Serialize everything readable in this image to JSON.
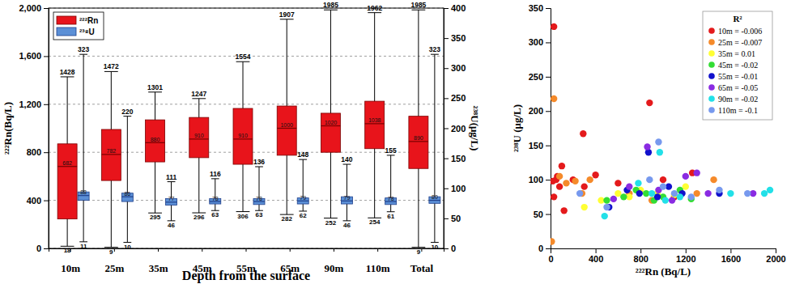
{
  "chart_data": [
    {
      "type": "box",
      "x_label": "Depth from the surface",
      "y_label": "²²²Rn(Bq/L)",
      "y2_label": "²³⁸U(μg/L)",
      "categories": [
        "10m",
        "25m",
        "35m",
        "45m",
        "55m",
        "65m",
        "90m",
        "110m",
        "Total"
      ],
      "ylim": [
        0,
        2000
      ],
      "yticks": [
        0,
        400,
        800,
        {
          "value": 1200,
          "label": "1,200"
        },
        {
          "value": 1600,
          "label": "1,600"
        },
        {
          "value": 2000,
          "label": "2,000"
        }
      ],
      "y2lim": [
        0,
        400
      ],
      "y2ticks": [
        0,
        50,
        100,
        150,
        200,
        250,
        300,
        350,
        400
      ],
      "grid": true,
      "legend": "top-left",
      "data_labels": true,
      "series": [
        {
          "name": "²²²Rn",
          "color": "#e8141b",
          "min": [
            18,
            9,
            295,
            296,
            306,
            282,
            252,
            254,
            9
          ],
          "q1": [
            245,
            565,
            720,
            755,
            700,
            775,
            800,
            830,
            665
          ],
          "median": [
            682,
            782,
            880,
            910,
            910,
            1000,
            1020,
            1038,
            890
          ],
          "q3": [
            870,
            990,
            1070,
            1090,
            1165,
            1185,
            1125,
            1225,
            1100
          ],
          "max": [
            1428,
            1472,
            1301,
            1247,
            1554,
            1907,
            1985,
            1962,
            1985
          ]
        },
        {
          "name": "²³⁸U",
          "color": "#5b8fd6",
          "axis": "y2",
          "min": [
            11,
            10,
            46,
            63,
            63,
            62,
            46,
            61,
            10
          ],
          "q1": [
            80,
            78,
            72,
            74,
            73,
            74,
            74,
            73,
            75
          ],
          "median": [
            88,
            86,
            77,
            78,
            78,
            79,
            79,
            78,
            80
          ],
          "q3": [
            94,
            92,
            83,
            83,
            83,
            84,
            86,
            84,
            86
          ],
          "max": [
            323,
            220,
            111,
            116,
            136,
            148,
            140,
            155,
            323
          ]
        }
      ]
    },
    {
      "type": "scatter",
      "x_label": "²²²Rn (Bq/L)",
      "y_label": "²³⁸U (μg/L)",
      "xlim": [
        0,
        2000
      ],
      "xticks": [
        0,
        400,
        800,
        1200,
        1600,
        2000
      ],
      "ylim": [
        0,
        350
      ],
      "yticks": [
        0,
        50,
        100,
        150,
        200,
        250,
        300,
        350
      ],
      "legend": "top-right",
      "legend_title": "R²",
      "series": [
        {
          "name": "10m = -0.006",
          "color": "#e41a1c",
          "x": [
            30,
            20,
            30,
            50,
            60,
            80,
            100,
            120,
            200,
            290,
            400,
            880,
            300,
            600,
            1100,
            1260,
            1000
          ],
          "values": [
            323,
            98,
            75,
            100,
            105,
            90,
            120,
            55,
            100,
            167,
            107,
            212,
            90,
            95,
            75,
            110,
            100
          ]
        },
        {
          "name": "25m = -0.007",
          "color": "#f58a2a",
          "x": [
            30,
            10,
            80,
            140,
            220,
            280,
            350,
            700,
            900,
            1450,
            1300
          ],
          "values": [
            218,
            10,
            105,
            95,
            98,
            80,
            100,
            80,
            70,
            100,
            80
          ]
        },
        {
          "name": "35m = 0.01",
          "color": "#ffff33",
          "x": [
            300,
            450,
            600,
            700,
            800,
            950,
            1100,
            1200
          ],
          "values": [
            60,
            70,
            80,
            75,
            85,
            80,
            78,
            90
          ]
        },
        {
          "name": "45m = -0.02",
          "color": "#33dd33",
          "x": [
            500,
            650,
            760,
            850,
            920,
            1000,
            1150,
            1250
          ],
          "values": [
            70,
            75,
            85,
            80,
            70,
            75,
            85,
            72
          ]
        },
        {
          "name": "55m = -0.01",
          "color": "#1111cc",
          "x": [
            520,
            680,
            790,
            870,
            950,
            1050,
            1170,
            1500
          ],
          "values": [
            60,
            85,
            80,
            140,
            75,
            90,
            80,
            80
          ]
        },
        {
          "name": "65m = -0.05",
          "color": "#8a2be2",
          "x": [
            560,
            700,
            860,
            960,
            1080,
            1200,
            1400,
            1800,
            1300
          ],
          "values": [
            72,
            90,
            148,
            85,
            70,
            105,
            80,
            80,
            110
          ]
        },
        {
          "name": "90m = -0.02",
          "color": "#22e0e8",
          "x": [
            480,
            780,
            900,
            970,
            1020,
            1150,
            1600,
            1950,
            1900
          ],
          "values": [
            47,
            95,
            80,
            140,
            70,
            75,
            80,
            85,
            80
          ]
        },
        {
          "name": "110m = -0.1",
          "color": "#7799ee",
          "x": [
            260,
            500,
            880,
            960,
            1000,
            1100,
            1250,
            1500,
            1750
          ],
          "values": [
            80,
            60,
            100,
            155,
            90,
            80,
            75,
            85,
            80
          ]
        }
      ]
    }
  ]
}
